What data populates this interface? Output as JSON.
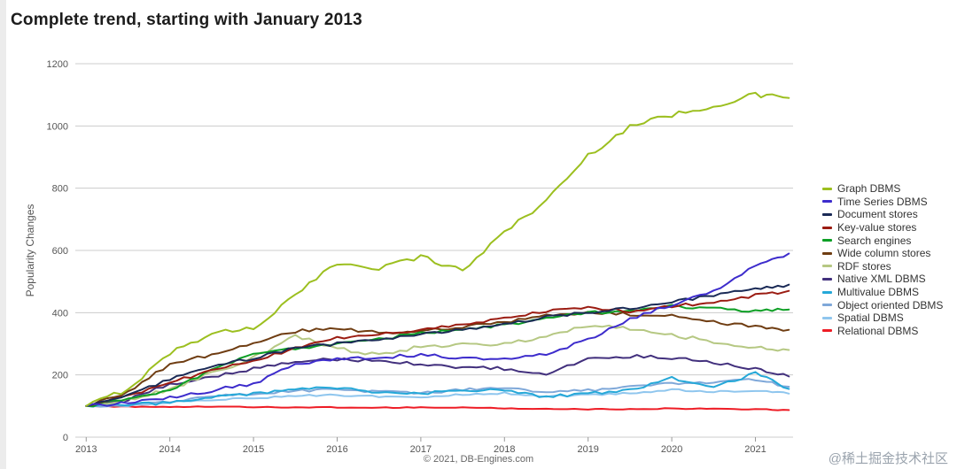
{
  "page": {
    "title": "Complete trend, starting with January 2013",
    "footer": "© 2021, DB-Engines.com",
    "watermark": "@稀土掘金技术社区"
  },
  "chart_data": {
    "type": "line",
    "title": "Complete trend, starting with January 2013",
    "xlabel": "",
    "ylabel": "Popularity Changes",
    "ylim": [
      0,
      1200
    ],
    "ytick_step": 200,
    "xlim": [
      2012.87,
      2021.45
    ],
    "x_ticks": [
      2013,
      2014,
      2015,
      2016,
      2017,
      2018,
      2019,
      2020,
      2021
    ],
    "grid": true,
    "legend_position": "right",
    "x": [
      2013.0,
      2013.5,
      2014.0,
      2014.5,
      2015.0,
      2015.5,
      2016.0,
      2016.5,
      2017.0,
      2017.5,
      2018.0,
      2018.5,
      2019.0,
      2019.5,
      2020.0,
      2020.5,
      2021.0,
      2021.4
    ],
    "series": [
      {
        "name": "Graph DBMS",
        "color": "#9cbf1f",
        "values": [
          100,
          155,
          270,
          335,
          350,
          455,
          560,
          545,
          580,
          535,
          660,
          760,
          905,
          1000,
          1035,
          1065,
          1100,
          1090
        ]
      },
      {
        "name": "Time Series DBMS",
        "color": "#3d2ccc",
        "values": [
          100,
          110,
          125,
          150,
          170,
          235,
          255,
          255,
          265,
          255,
          250,
          265,
          315,
          380,
          425,
          470,
          555,
          590
        ]
      },
      {
        "name": "Document stores",
        "color": "#1a2a56",
        "values": [
          100,
          135,
          185,
          225,
          255,
          285,
          300,
          315,
          330,
          345,
          365,
          385,
          400,
          415,
          435,
          455,
          475,
          490
        ]
      },
      {
        "name": "Key-value stores",
        "color": "#9b1c12",
        "values": [
          100,
          130,
          175,
          215,
          245,
          285,
          320,
          330,
          345,
          360,
          385,
          405,
          415,
          405,
          420,
          435,
          455,
          470
        ]
      },
      {
        "name": "Search engines",
        "color": "#0d9f25",
        "values": [
          100,
          120,
          150,
          215,
          270,
          285,
          300,
          315,
          335,
          345,
          360,
          380,
          400,
          405,
          420,
          415,
          405,
          410
        ]
      },
      {
        "name": "Wide column stores",
        "color": "#6f3d12",
        "values": [
          100,
          145,
          235,
          265,
          305,
          340,
          350,
          335,
          340,
          355,
          370,
          390,
          400,
          395,
          390,
          370,
          355,
          345
        ]
      },
      {
        "name": "RDF stores",
        "color": "#b6c883",
        "values": [
          100,
          120,
          155,
          205,
          255,
          325,
          285,
          265,
          290,
          300,
          300,
          320,
          360,
          350,
          330,
          305,
          290,
          280
        ]
      },
      {
        "name": "Native XML DBMS",
        "color": "#42307d",
        "values": [
          100,
          120,
          170,
          195,
          220,
          245,
          250,
          245,
          235,
          225,
          220,
          205,
          250,
          260,
          255,
          240,
          220,
          195
        ]
      },
      {
        "name": "Multivalue DBMS",
        "color": "#25a8d8",
        "values": [
          100,
          105,
          110,
          130,
          140,
          155,
          160,
          140,
          140,
          150,
          150,
          130,
          140,
          150,
          190,
          160,
          205,
          155
        ]
      },
      {
        "name": "Object oriented DBMS",
        "color": "#7fa8d9",
        "values": [
          100,
          105,
          115,
          130,
          140,
          148,
          155,
          145,
          142,
          152,
          160,
          145,
          150,
          162,
          172,
          176,
          186,
          162
        ]
      },
      {
        "name": "Spatial DBMS",
        "color": "#8fc6ee",
        "values": [
          100,
          102,
          112,
          120,
          126,
          132,
          136,
          130,
          130,
          136,
          142,
          130,
          136,
          142,
          152,
          146,
          150,
          140
        ]
      },
      {
        "name": "Relational DBMS",
        "color": "#ee1c25",
        "values": [
          100,
          98,
          97,
          98,
          97,
          96,
          96,
          95,
          95,
          95,
          92,
          90,
          90,
          90,
          92,
          91,
          90,
          87
        ]
      }
    ]
  }
}
